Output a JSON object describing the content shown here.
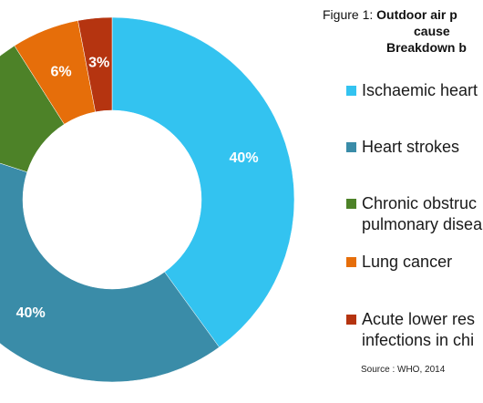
{
  "figure": {
    "prefix": "Figure 1:",
    "title_line1": "Outdoor air p",
    "title_line2": "cause",
    "title_line3": "Breakdown b"
  },
  "chart_data": {
    "type": "pie",
    "donut": true,
    "slices": [
      {
        "label": "Ischaemic heart",
        "value": 40,
        "data_label": "40%",
        "color": "#33c3f0"
      },
      {
        "label": "Heart strokes",
        "value": 40,
        "data_label": "40%",
        "color": "#3a8ca8"
      },
      {
        "label": "Chronic obstruc pulmonary disea",
        "value": 11,
        "data_label": "",
        "color": "#4d8228"
      },
      {
        "label": "Lung cancer",
        "value": 6,
        "data_label": "6%",
        "color": "#e66e0a"
      },
      {
        "label": "Acute lower res infections in chi",
        "value": 3,
        "data_label": "3%",
        "color": "#b53410"
      }
    ]
  },
  "legend": {
    "items": [
      {
        "lines": [
          "Ischaemic heart"
        ],
        "color": "#33c3f0"
      },
      {
        "lines": [
          "Heart strokes"
        ],
        "color": "#3a8ca8"
      },
      {
        "lines": [
          "Chronic obstruc",
          "pulmonary disea"
        ],
        "color": "#4d8228"
      },
      {
        "lines": [
          "Lung cancer"
        ],
        "color": "#e66e0a"
      },
      {
        "lines": [
          "Acute lower res",
          "infections in chi"
        ],
        "color": "#b53410"
      }
    ]
  },
  "source": "Source : WHO, 2014"
}
